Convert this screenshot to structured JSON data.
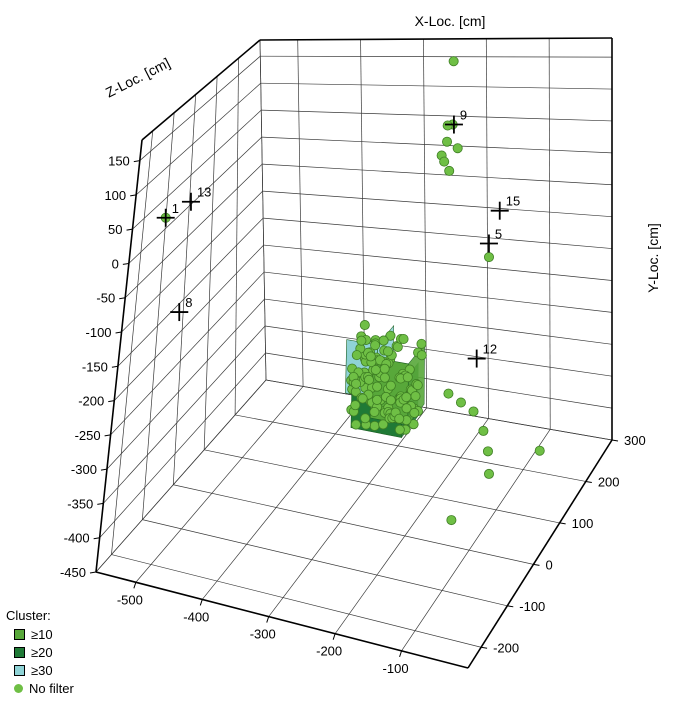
{
  "chart_data": {
    "type": "scatter",
    "title": "",
    "xlabel": "X-Loc. [cm]",
    "ylabel": "Y-Loc. [cm]",
    "zlabel": "Z-Loc. [cm]",
    "x_ticks": [
      "-500",
      "-400",
      "-300",
      "-200",
      "-100"
    ],
    "y_ticks": [
      "300",
      "200",
      "100",
      "0",
      "-100",
      "-200"
    ],
    "z_ticks": [
      "150",
      "100",
      "50",
      "0",
      "-50",
      "-100",
      "-150",
      "-200",
      "-250",
      "-300",
      "-350",
      "-400",
      "-450"
    ],
    "grid": true,
    "legend_placement": "bottom-left",
    "sensors": [
      {
        "label": "1",
        "x": -535,
        "y": -170,
        "z": 45
      },
      {
        "label": "13",
        "x": -495,
        "y": -170,
        "z": 75
      },
      {
        "label": "8",
        "x": -500,
        "y": -170,
        "z": -90
      },
      {
        "label": "9",
        "x": -240,
        "y": 270,
        "z": 50
      },
      {
        "label": "15",
        "x": -60,
        "y": 25,
        "z": 40
      },
      {
        "label": "5",
        "x": -78,
        "y": 25,
        "z": -10
      },
      {
        "label": "12",
        "x": -70,
        "y": -40,
        "z": -145
      }
    ],
    "points": [
      {
        "x": -240,
        "y": 270,
        "z": 155
      },
      {
        "x": -242,
        "y": 270,
        "z": 50
      },
      {
        "x": -250,
        "y": 270,
        "z": 48
      },
      {
        "x": -252,
        "y": 272,
        "z": 20
      },
      {
        "x": -235,
        "y": 272,
        "z": 10
      },
      {
        "x": -262,
        "y": 275,
        "z": -5
      },
      {
        "x": -258,
        "y": 275,
        "z": -15
      },
      {
        "x": -250,
        "y": 275,
        "z": -30
      },
      {
        "x": -78,
        "y": 25,
        "z": -30
      },
      {
        "x": -535,
        "y": -170,
        "z": 45
      },
      {
        "x": -150,
        "y": 40,
        "z": -250
      },
      {
        "x": -130,
        "y": 40,
        "z": -260
      },
      {
        "x": -110,
        "y": 40,
        "z": -270
      },
      {
        "x": -90,
        "y": 30,
        "z": -290
      },
      {
        "x": -70,
        "y": 0,
        "z": -300
      },
      {
        "x": -60,
        "y": -20,
        "z": -320
      },
      {
        "x": -60,
        "y": -160,
        "z": -310
      },
      {
        "x": -5,
        "y": 40,
        "z": -310
      }
    ],
    "clusters": [
      {
        "level": "≥10",
        "x": -240,
        "y": -20,
        "z": -240
      },
      {
        "level": "≥10",
        "x": -225,
        "y": -20,
        "z": -250
      },
      {
        "level": "≥20",
        "x": -210,
        "y": -20,
        "z": -255
      },
      {
        "level": "≥30",
        "x": -255,
        "y": -20,
        "z": -230
      }
    ],
    "cluster_cloud": {
      "x_range": [
        -280,
        -180
      ],
      "y_range": [
        -40,
        20
      ],
      "z_range": [
        -280,
        -150
      ],
      "count": 120
    },
    "colors": {
      "point": "#6fbf45",
      "point_edge": "#3e7e24",
      "c10": "#58a83a",
      "c20": "#1f7a36",
      "c30": "#8fd3d6"
    }
  },
  "legend": {
    "title": "Cluster:",
    "items": [
      {
        "label": "≥10",
        "shape": "square",
        "color": "#58a83a"
      },
      {
        "label": "≥20",
        "shape": "square",
        "color": "#1f7a36"
      },
      {
        "label": "≥30",
        "shape": "square",
        "color": "#8fd3d6"
      },
      {
        "label": "No filter",
        "shape": "circle",
        "color": "#6fbf45"
      }
    ]
  }
}
